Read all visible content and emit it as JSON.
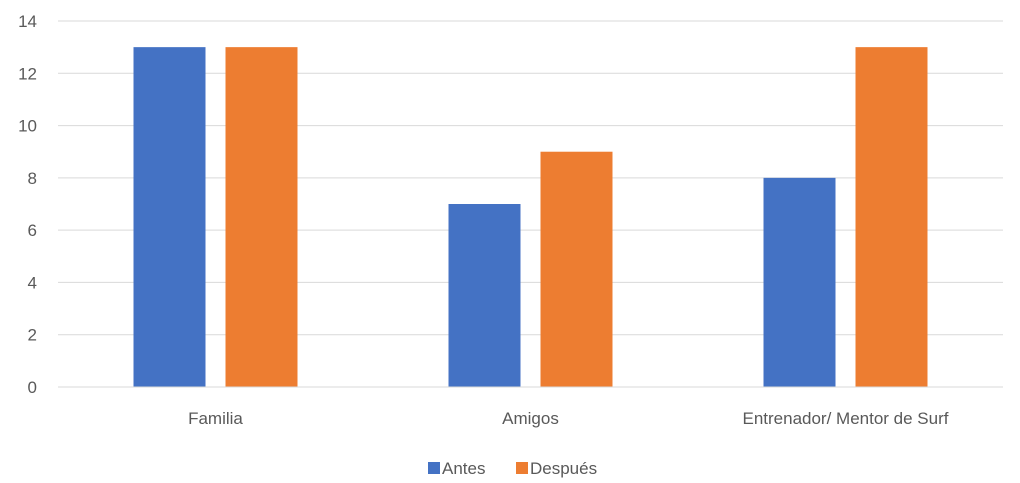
{
  "chart_data": {
    "type": "bar",
    "title": "",
    "xlabel": "",
    "ylabel": "",
    "categories": [
      "Familia",
      "Amigos",
      "Entrenador/ Mentor de Surf"
    ],
    "series": [
      {
        "name": "Antes",
        "values": [
          13,
          7,
          8
        ],
        "color": "#4472c4"
      },
      {
        "name": "Después",
        "values": [
          13,
          9,
          13
        ],
        "color": "#ed7d31"
      }
    ],
    "ylim": [
      0,
      14
    ],
    "yticks": [
      0,
      2,
      4,
      6,
      8,
      10,
      12,
      14
    ],
    "grid": true,
    "legend_position": "bottom"
  }
}
